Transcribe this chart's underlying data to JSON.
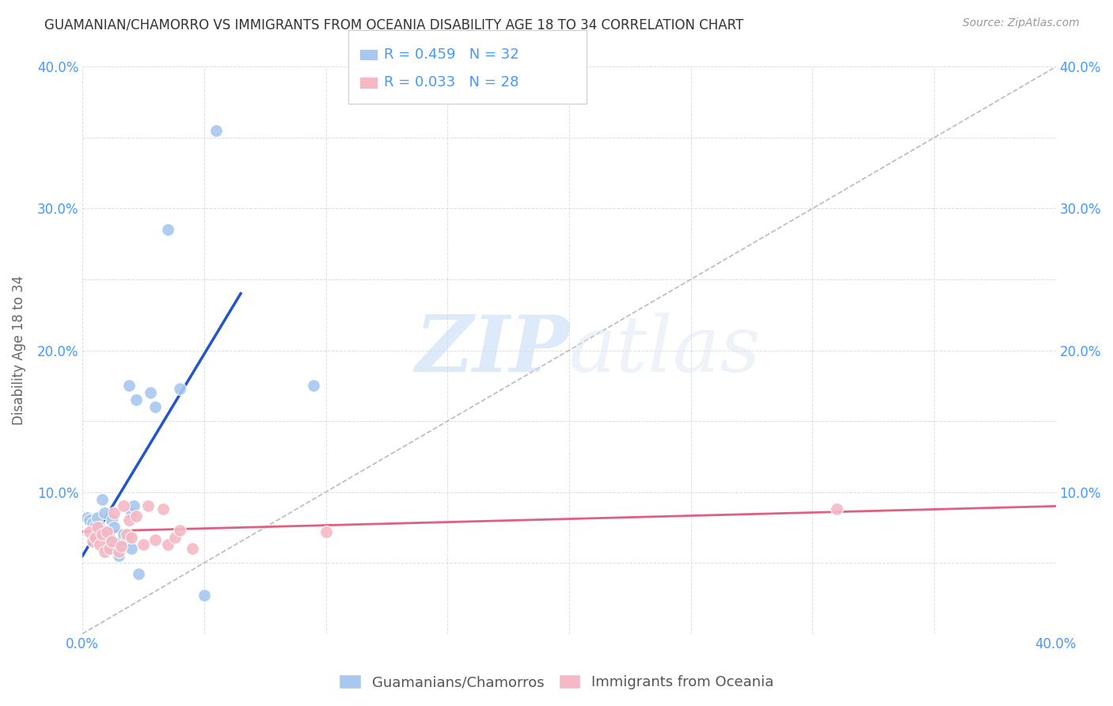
{
  "title": "GUAMANIAN/CHAMORRO VS IMMIGRANTS FROM OCEANIA DISABILITY AGE 18 TO 34 CORRELATION CHART",
  "source": "Source: ZipAtlas.com",
  "ylabel": "Disability Age 18 to 34",
  "xlim": [
    0.0,
    0.4
  ],
  "ylim": [
    0.0,
    0.4
  ],
  "xticks": [
    0.0,
    0.05,
    0.1,
    0.15,
    0.2,
    0.25,
    0.3,
    0.35,
    0.4
  ],
  "yticks": [
    0.0,
    0.05,
    0.1,
    0.15,
    0.2,
    0.25,
    0.3,
    0.35,
    0.4
  ],
  "xticklabels": [
    "0.0%",
    "",
    "",
    "",
    "",
    "",
    "",
    "",
    "40.0%"
  ],
  "yticklabels": [
    "",
    "",
    "10.0%",
    "",
    "20.0%",
    "",
    "30.0%",
    "",
    "40.0%"
  ],
  "right_yticklabels": [
    "",
    "",
    "10.0%",
    "",
    "20.0%",
    "",
    "30.0%",
    "",
    "40.0%"
  ],
  "blue_R": "0.459",
  "blue_N": "32",
  "pink_R": "0.033",
  "pink_N": "28",
  "blue_color": "#a8c8f0",
  "pink_color": "#f5b8c4",
  "blue_line_color": "#2255cc",
  "pink_line_color": "#e06080",
  "diagonal_color": "#bbbbbb",
  "legend_label_blue": "Guamanians/Chamorros",
  "legend_label_pink": "Immigrants from Oceania",
  "blue_points_x": [
    0.002,
    0.003,
    0.004,
    0.005,
    0.006,
    0.007,
    0.008,
    0.008,
    0.009,
    0.01,
    0.01,
    0.011,
    0.012,
    0.013,
    0.014,
    0.015,
    0.016,
    0.017,
    0.018,
    0.019,
    0.02,
    0.02,
    0.021,
    0.022,
    0.023,
    0.028,
    0.03,
    0.035,
    0.04,
    0.05,
    0.055,
    0.095
  ],
  "blue_points_y": [
    0.082,
    0.08,
    0.078,
    0.076,
    0.082,
    0.075,
    0.073,
    0.095,
    0.085,
    0.07,
    0.06,
    0.068,
    0.08,
    0.075,
    0.063,
    0.055,
    0.065,
    0.07,
    0.066,
    0.175,
    0.085,
    0.06,
    0.09,
    0.165,
    0.042,
    0.17,
    0.16,
    0.285,
    0.173,
    0.027,
    0.355,
    0.175
  ],
  "pink_points_x": [
    0.003,
    0.004,
    0.005,
    0.006,
    0.007,
    0.008,
    0.009,
    0.01,
    0.011,
    0.012,
    0.013,
    0.015,
    0.016,
    0.017,
    0.018,
    0.019,
    0.02,
    0.022,
    0.025,
    0.027,
    0.03,
    0.033,
    0.035,
    0.038,
    0.04,
    0.045,
    0.1,
    0.31
  ],
  "pink_points_y": [
    0.072,
    0.065,
    0.068,
    0.075,
    0.063,
    0.07,
    0.058,
    0.072,
    0.06,
    0.065,
    0.085,
    0.058,
    0.062,
    0.09,
    0.07,
    0.08,
    0.068,
    0.083,
    0.063,
    0.09,
    0.066,
    0.088,
    0.063,
    0.068,
    0.073,
    0.06,
    0.072,
    0.088
  ],
  "blue_line_x": [
    0.0,
    0.065
  ],
  "blue_line_y": [
    0.055,
    0.24
  ],
  "pink_line_x": [
    0.0,
    0.4
  ],
  "pink_line_y": [
    0.072,
    0.09
  ],
  "watermark_zip": "ZIP",
  "watermark_atlas": "atlas",
  "background_color": "#ffffff",
  "grid_color": "#dddddd",
  "title_color": "#333333",
  "axis_color": "#4499ff",
  "marker_size": 130
}
